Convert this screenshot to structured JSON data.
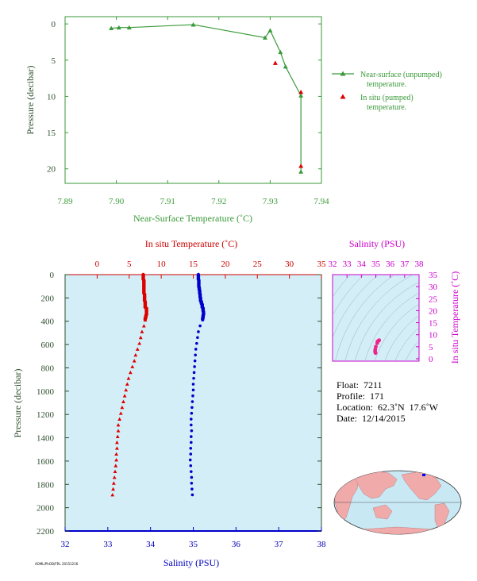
{
  "colors": {
    "near_surface": "#3a9a3a",
    "axis_dark_green": "#2f4f2f",
    "temperature": "#dd0000",
    "salinity": "#0000cc",
    "inset_axis": "#cc00cc",
    "plot_bg": "#d4eef8",
    "land": "#f0aaaa",
    "ocean": "#c8e8f4"
  },
  "chart_data": [
    {
      "type": "line",
      "xlabel": "Near-Surface Temperature (˚C)",
      "ylabel": "Pressure (decibar)",
      "xlim": [
        7.89,
        7.94
      ],
      "ylim": [
        22,
        -1
      ],
      "x_ticks": [
        "7.89",
        "7.90",
        "7.91",
        "7.92",
        "7.93",
        "7.94"
      ],
      "y_ticks": [
        "0",
        "5",
        "10",
        "15",
        "20"
      ],
      "legend_position": "right",
      "series": [
        {
          "name": "Near-surface (unpumped) temperature.",
          "style": "line-triangle",
          "points": [
            [
              7.899,
              0.6
            ],
            [
              7.9005,
              0.5
            ],
            [
              7.9025,
              0.5
            ],
            [
              7.915,
              0.1
            ],
            [
              7.929,
              1.9
            ],
            [
              7.93,
              0.9
            ],
            [
              7.932,
              3.9
            ],
            [
              7.933,
              5.9
            ],
            [
              7.936,
              9.9
            ],
            [
              7.936,
              20.4
            ]
          ]
        },
        {
          "name": "In situ (pumped) temperature.",
          "style": "triangle",
          "points": [
            [
              7.931,
              5.4
            ],
            [
              7.936,
              9.4
            ],
            [
              7.936,
              19.6
            ]
          ]
        }
      ]
    },
    {
      "type": "scatter",
      "ylabel": "Pressure (decibar)",
      "ylim": [
        2200,
        0
      ],
      "y_ticks": [
        "0",
        "200",
        "400",
        "600",
        "800",
        "1000",
        "1200",
        "1400",
        "1600",
        "1800",
        "2000",
        "2200"
      ],
      "top_axis": {
        "label": "In situ Temperature (˚C)",
        "lim": [
          -5,
          35
        ],
        "ticks": [
          "0",
          "5",
          "10",
          "15",
          "20",
          "25",
          "30",
          "35"
        ]
      },
      "bottom_axis": {
        "label": "Salinity (PSU)",
        "lim": [
          32,
          38
        ],
        "ticks": [
          "32",
          "33",
          "34",
          "35",
          "36",
          "37",
          "38"
        ]
      },
      "series": [
        {
          "name": "In situ Temperature",
          "style": "triangle",
          "points": [
            [
              7.2,
              5
            ],
            [
              7.2,
              30
            ],
            [
              7.3,
              60
            ],
            [
              7.3,
              90
            ],
            [
              7.3,
              120
            ],
            [
              7.3,
              150
            ],
            [
              7.4,
              180
            ],
            [
              7.4,
              210
            ],
            [
              7.5,
              240
            ],
            [
              7.5,
              270
            ],
            [
              7.7,
              300
            ],
            [
              7.7,
              330
            ],
            [
              7.6,
              360
            ],
            [
              7.5,
              390
            ],
            [
              7.3,
              440
            ],
            [
              7.0,
              490
            ],
            [
              6.8,
              540
            ],
            [
              6.6,
              590
            ],
            [
              6.3,
              640
            ],
            [
              6.0,
              690
            ],
            [
              5.8,
              740
            ],
            [
              5.5,
              790
            ],
            [
              5.2,
              840
            ],
            [
              4.9,
              890
            ],
            [
              4.7,
              940
            ],
            [
              4.5,
              990
            ],
            [
              4.3,
              1040
            ],
            [
              4.1,
              1090
            ],
            [
              3.9,
              1140
            ],
            [
              3.7,
              1190
            ],
            [
              3.5,
              1240
            ],
            [
              3.3,
              1290
            ],
            [
              3.3,
              1340
            ],
            [
              3.2,
              1390
            ],
            [
              3.1,
              1440
            ],
            [
              3.1,
              1490
            ],
            [
              3.0,
              1540
            ],
            [
              3.0,
              1590
            ],
            [
              2.9,
              1640
            ],
            [
              2.8,
              1690
            ],
            [
              2.7,
              1740
            ],
            [
              2.6,
              1790
            ],
            [
              2.5,
              1840
            ],
            [
              2.4,
              1890
            ]
          ]
        },
        {
          "name": "Salinity",
          "style": "dot",
          "points": [
            [
              35.12,
              5
            ],
            [
              35.12,
              30
            ],
            [
              35.13,
              60
            ],
            [
              35.13,
              90
            ],
            [
              35.14,
              120
            ],
            [
              35.15,
              150
            ],
            [
              35.16,
              180
            ],
            [
              35.17,
              210
            ],
            [
              35.19,
              240
            ],
            [
              35.21,
              270
            ],
            [
              35.23,
              300
            ],
            [
              35.24,
              330
            ],
            [
              35.23,
              360
            ],
            [
              35.22,
              390
            ],
            [
              35.16,
              440
            ],
            [
              35.12,
              490
            ],
            [
              35.1,
              540
            ],
            [
              35.08,
              590
            ],
            [
              35.06,
              640
            ],
            [
              35.05,
              690
            ],
            [
              35.04,
              740
            ],
            [
              35.03,
              790
            ],
            [
              35.02,
              840
            ],
            [
              35.01,
              890
            ],
            [
              35.0,
              940
            ],
            [
              35.0,
              990
            ],
            [
              34.99,
              1040
            ],
            [
              34.98,
              1090
            ],
            [
              34.97,
              1140
            ],
            [
              34.96,
              1190
            ],
            [
              34.95,
              1240
            ],
            [
              34.95,
              1290
            ],
            [
              34.96,
              1340
            ],
            [
              34.95,
              1390
            ],
            [
              34.95,
              1440
            ],
            [
              34.94,
              1490
            ],
            [
              34.94,
              1540
            ],
            [
              34.93,
              1590
            ],
            [
              34.94,
              1640
            ],
            [
              34.95,
              1690
            ],
            [
              34.96,
              1740
            ],
            [
              34.96,
              1790
            ],
            [
              34.97,
              1840
            ],
            [
              34.98,
              1890
            ]
          ]
        }
      ]
    },
    {
      "type": "scatter",
      "xlabel": "Salinity (PSU)",
      "ylabel": "In situ Temperature (˚C)",
      "xlim": [
        32,
        38
      ],
      "ylim": [
        -1,
        35
      ],
      "x_ticks": [
        "32",
        "33",
        "34",
        "35",
        "36",
        "37",
        "38"
      ],
      "y_ticks": [
        "0",
        "5",
        "10",
        "15",
        "20",
        "25",
        "30",
        "35"
      ],
      "series": [
        {
          "name": "T-S profile",
          "style": "dot",
          "points": [
            [
              35.12,
              7.2
            ],
            [
              35.2,
              7.5
            ],
            [
              35.23,
              7.7
            ],
            [
              35.1,
              6.5
            ],
            [
              35.0,
              5.0
            ],
            [
              34.96,
              3.8
            ],
            [
              34.95,
              3.0
            ],
            [
              34.98,
              2.4
            ]
          ]
        }
      ]
    }
  ],
  "info": {
    "float": "Float:  7211",
    "profile": "Profile:  171",
    "location": "Location:  62.3˚N  17.6˚W",
    "date": "Date:  12/14/2015"
  },
  "credit": "AOML/PhOD/FRL 20151216",
  "map": {
    "marker": [
      62.3,
      -17.6
    ]
  }
}
